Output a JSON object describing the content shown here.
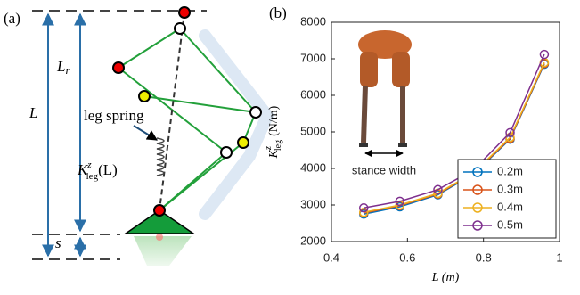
{
  "diagram": {
    "panel_label": "(a)",
    "length_label": "L",
    "rest_length_label": {
      "symbol": "L",
      "sub": "r"
    },
    "spring_label": "leg spring",
    "stiffness_label": {
      "symbol": "K",
      "sub": "leg",
      "sup": "z",
      "arg": "(L)"
    },
    "offset_label": "s"
  },
  "chart_data": {
    "type": "line",
    "panel_label": "(b)",
    "xlabel": "L (m)",
    "ylabel": {
      "symbol": "K",
      "sub": "leg",
      "sup": "z",
      "unit": "(N/m)"
    },
    "annotation": "stance width",
    "x": [
      0.485,
      0.58,
      0.68,
      0.775,
      0.87,
      0.96
    ],
    "series": [
      {
        "name": "0.2m",
        "color": "#0072bd",
        "values": [
          2750,
          2950,
          3280,
          3850,
          4800,
          6850
        ]
      },
      {
        "name": "0.3m",
        "color": "#d95319",
        "values": [
          2780,
          2980,
          3300,
          3870,
          4820,
          6870
        ]
      },
      {
        "name": "0.4m",
        "color": "#edb120",
        "values": [
          2800,
          3000,
          3320,
          3890,
          4850,
          6900
        ]
      },
      {
        "name": "0.5m",
        "color": "#7e2f8e",
        "values": [
          2920,
          3100,
          3420,
          3970,
          4980,
          7120
        ]
      }
    ],
    "xlim": [
      0.4,
      1
    ],
    "xticks": [
      0.4,
      0.6,
      0.8,
      1
    ],
    "ylim": [
      2000,
      8000
    ],
    "yticks": [
      2000,
      3000,
      4000,
      5000,
      6000,
      7000,
      8000
    ],
    "grid": false,
    "legend": "lower right"
  }
}
